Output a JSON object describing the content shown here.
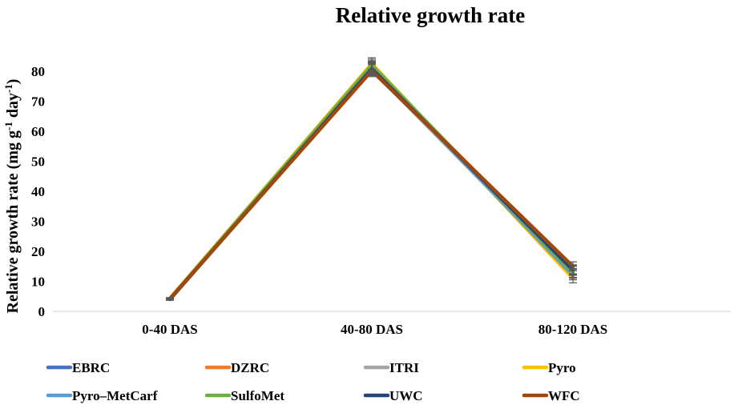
{
  "chart_data": {
    "type": "line",
    "title": "Relative growth rate",
    "ylabel": "Relative growth rate (mg g",
    "ylabel_sup1": "-1",
    "ylabel_mid": " day",
    "ylabel_sup2": "-1",
    "ylabel_end": ")",
    "xlabel": "",
    "categories": [
      "0-40 DAS",
      "40-80 DAS",
      "80-120 DAS"
    ],
    "ylim": [
      0,
      85
    ],
    "yticks": [
      0,
      10,
      20,
      30,
      40,
      50,
      60,
      70,
      80
    ],
    "legend_position": "bottom",
    "series": [
      {
        "name": "EBRC",
        "color": "#4472C4",
        "values": [
          4.2,
          81.0,
          13.5
        ],
        "errors": [
          0.3,
          2.0,
          1.5
        ]
      },
      {
        "name": "DZRC",
        "color": "#ED7D31",
        "values": [
          4.1,
          81.2,
          14.0
        ],
        "errors": [
          0.3,
          2.0,
          1.5
        ]
      },
      {
        "name": "ITRI",
        "color": "#A5A5A5",
        "values": [
          4.0,
          80.5,
          12.5
        ],
        "errors": [
          0.3,
          2.0,
          1.5
        ]
      },
      {
        "name": "Pyro",
        "color": "#FFC000",
        "values": [
          4.3,
          82.5,
          11.0
        ],
        "errors": [
          0.3,
          2.0,
          1.5
        ]
      },
      {
        "name": "Pyro–MetCarf",
        "color": "#5B9BD5",
        "values": [
          4.1,
          81.5,
          12.0
        ],
        "errors": [
          0.3,
          2.0,
          1.5
        ]
      },
      {
        "name": "SulfoMet",
        "color": "#70AD47",
        "values": [
          4.2,
          82.0,
          12.8
        ],
        "errors": [
          0.3,
          2.0,
          1.5
        ]
      },
      {
        "name": "UWC",
        "color": "#264478",
        "values": [
          4.0,
          80.8,
          13.8
        ],
        "errors": [
          0.3,
          2.0,
          1.5
        ]
      },
      {
        "name": "WFC",
        "color": "#9E480E",
        "values": [
          4.2,
          80.2,
          15.0
        ],
        "errors": [
          0.3,
          2.0,
          1.5
        ]
      }
    ]
  }
}
